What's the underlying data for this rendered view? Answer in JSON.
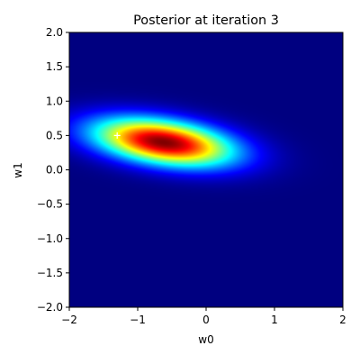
{
  "chart_data": {
    "type": "heatmap",
    "title": "Posterior at iteration 3",
    "xlabel": "w0",
    "ylabel": "w1",
    "xlim": [
      -2,
      2
    ],
    "ylim": [
      -2,
      2
    ],
    "xticks": [
      -2,
      -1,
      0,
      1,
      2
    ],
    "yticks": [
      -2.0,
      -1.5,
      -1.0,
      -0.5,
      0.0,
      0.5,
      1.0,
      1.5,
      2.0
    ],
    "xtick_labels": [
      "−2",
      "−1",
      "0",
      "1",
      "2"
    ],
    "ytick_labels": [
      "−2.0",
      "−1.5",
      "−1.0",
      "−0.5",
      "0.0",
      "0.5",
      "1.0",
      "1.5",
      "2.0"
    ],
    "colormap": "jet",
    "grid": false,
    "posterior": {
      "distribution": "bivariate-gaussian",
      "mean": [
        -0.62,
        0.4
      ],
      "std": [
        0.7,
        0.24
      ],
      "correlation": -0.38
    },
    "true_weights_marker": {
      "w0": -1.3,
      "w1": 0.5,
      "marker": "+",
      "color": "#ffffff"
    }
  }
}
